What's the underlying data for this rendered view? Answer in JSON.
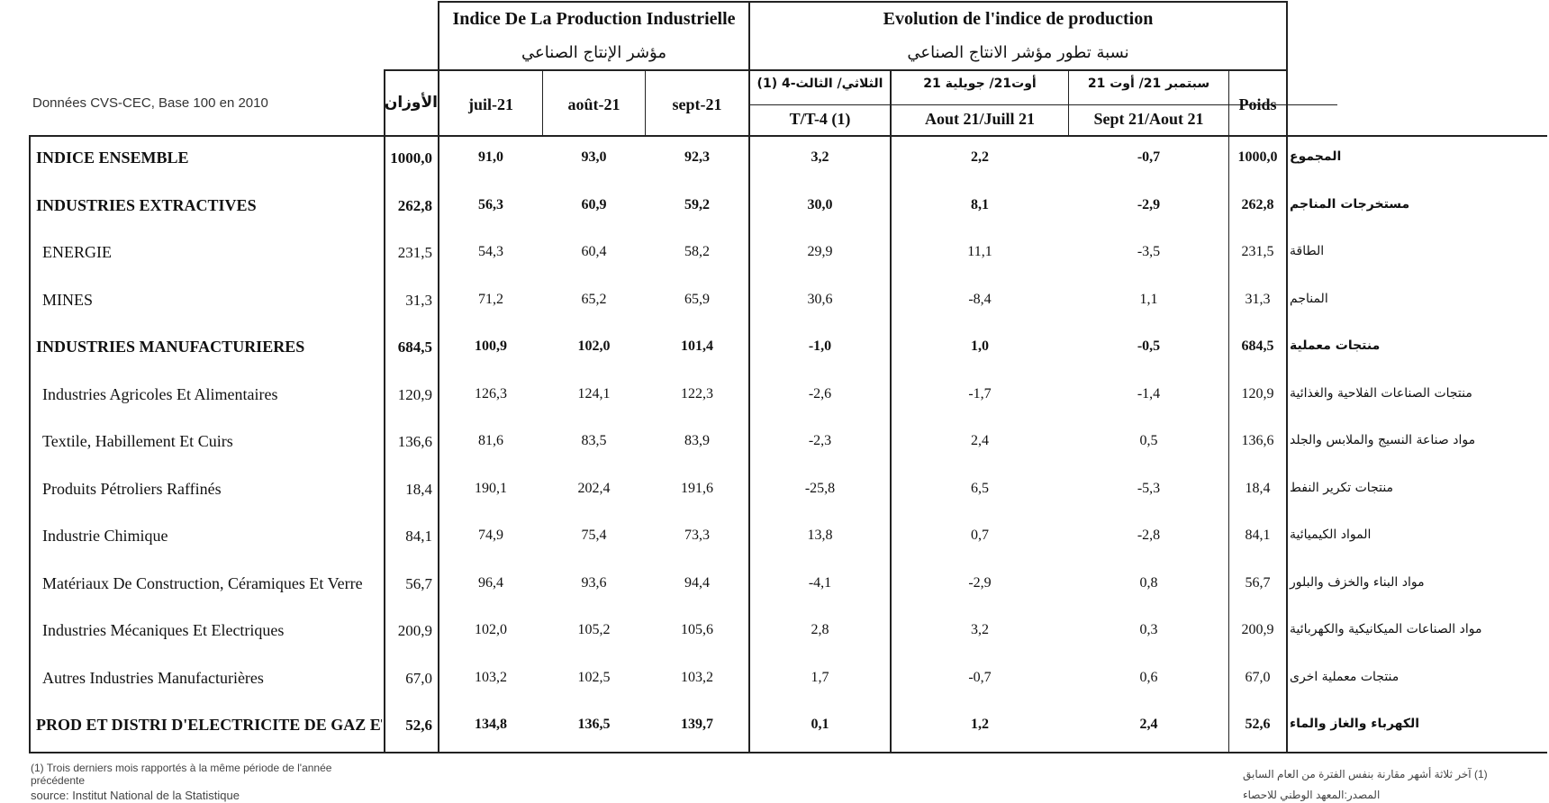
{
  "header": {
    "data_note": "Données CVS-CEC, Base 100 en 2010",
    "group_index_fr": "Indice De La Production Industrielle",
    "group_index_ar": "مؤشر الإنتاج الصناعي",
    "group_evo_fr": "Evolution de l'indice de production",
    "group_evo_ar": "نسبة تطور مؤشر الانتاج الصناعي",
    "weights_ar": "الأوزان",
    "months": [
      "juil-21",
      "août-21",
      "sept-21"
    ],
    "evo_cols": [
      {
        "ar": "الثلاثي/ الثالث-4 (1)",
        "fr": "T/T-4 (1)"
      },
      {
        "ar": "أوت21/ جويلية 21",
        "fr": "Aout 21/Juill 21"
      },
      {
        "ar": "سبتمبر 21/ أوت 21",
        "fr": "Sept 21/Aout 21"
      }
    ],
    "poids": "Poids"
  },
  "rows": [
    {
      "fr": "INDICE ENSEMBLE",
      "ar": "المجموع",
      "w": "1000,0",
      "m1": "91,0",
      "m2": "93,0",
      "m3": "92,3",
      "e1": "3,2",
      "e2": "2,2",
      "e3": "-0,7",
      "p": "1000,0",
      "bold": true
    },
    {
      "fr": "INDUSTRIES EXTRACTIVES",
      "ar": "مستخرجات المناجم",
      "w": "262,8",
      "m1": "56,3",
      "m2": "60,9",
      "m3": "59,2",
      "e1": "30,0",
      "e2": "8,1",
      "e3": "-2,9",
      "p": "262,8",
      "bold": true
    },
    {
      "fr": "ENERGIE",
      "ar": "الطاقة",
      "w": "231,5",
      "m1": "54,3",
      "m2": "60,4",
      "m3": "58,2",
      "e1": "29,9",
      "e2": "11,1",
      "e3": "-3,5",
      "p": "231,5",
      "bold": false
    },
    {
      "fr": "MINES",
      "ar": "المناجم",
      "w": "31,3",
      "m1": "71,2",
      "m2": "65,2",
      "m3": "65,9",
      "e1": "30,6",
      "e2": "-8,4",
      "e3": "1,1",
      "p": "31,3",
      "bold": false
    },
    {
      "fr": "INDUSTRIES MANUFACTURIERES",
      "ar": "منتجات معملية",
      "w": "684,5",
      "m1": "100,9",
      "m2": "102,0",
      "m3": "101,4",
      "e1": "-1,0",
      "e2": "1,0",
      "e3": "-0,5",
      "p": "684,5",
      "bold": true
    },
    {
      "fr": "Industries Agricoles Et Alimentaires",
      "ar": "منتجات الصناعات الفلاحية والغذائية",
      "w": "120,9",
      "m1": "126,3",
      "m2": "124,1",
      "m3": "122,3",
      "e1": "-2,6",
      "e2": "-1,7",
      "e3": "-1,4",
      "p": "120,9",
      "bold": false
    },
    {
      "fr": "Textile, Habillement Et Cuirs",
      "ar": "مواد صناعة النسيج والملابس والجلد",
      "w": "136,6",
      "m1": "81,6",
      "m2": "83,5",
      "m3": "83,9",
      "e1": "-2,3",
      "e2": "2,4",
      "e3": "0,5",
      "p": "136,6",
      "bold": false
    },
    {
      "fr": "Produits Pétroliers Raffinés",
      "ar": "منتجات تكرير النفط",
      "w": "18,4",
      "m1": "190,1",
      "m2": "202,4",
      "m3": "191,6",
      "e1": "-25,8",
      "e2": "6,5",
      "e3": "-5,3",
      "p": "18,4",
      "bold": false
    },
    {
      "fr": "Industrie Chimique",
      "ar": "المواد الكيميائية",
      "w": "84,1",
      "m1": "74,9",
      "m2": "75,4",
      "m3": "73,3",
      "e1": "13,8",
      "e2": "0,7",
      "e3": "-2,8",
      "p": "84,1",
      "bold": false
    },
    {
      "fr": "Matériaux De Construction, Céramiques Et Verre",
      "ar": "مواد البناء والخزف والبلور",
      "w": "56,7",
      "m1": "96,4",
      "m2": "93,6",
      "m3": "94,4",
      "e1": "-4,1",
      "e2": "-2,9",
      "e3": "0,8",
      "p": "56,7",
      "bold": false
    },
    {
      "fr": "Industries Mécaniques Et Electriques",
      "ar": "مواد الصناعات الميكانيكية والكهربائية",
      "w": "200,9",
      "m1": "102,0",
      "m2": "105,2",
      "m3": "105,6",
      "e1": "2,8",
      "e2": "3,2",
      "e3": "0,3",
      "p": "200,9",
      "bold": false
    },
    {
      "fr": "Autres Industries Manufacturières",
      "ar": "منتجات معملية اخرى",
      "w": "67,0",
      "m1": "103,2",
      "m2": "102,5",
      "m3": "103,2",
      "e1": "1,7",
      "e2": "-0,7",
      "e3": "0,6",
      "p": "67,0",
      "bold": false
    },
    {
      "fr": "PROD ET DISTRI D'ELECTRICITE DE GAZ ET",
      "ar": "الكهرباء والغاز والماء",
      "w": "52,6",
      "m1": "134,8",
      "m2": "136,5",
      "m3": "139,7",
      "e1": "0,1",
      "e2": "1,2",
      "e3": "2,4",
      "p": "52,6",
      "bold": true
    }
  ],
  "footer": {
    "note_fr": "(1) Trois derniers mois rapportés à la même période de l'année précédente",
    "source_fr": "source: Institut National de la Statistique",
    "note_ar": "(1) آخر ثلاثة أشهر مقارنة بنفس الفترة من العام السابق",
    "source_ar": "المصدر:المعهد الوطني للاحصاء"
  }
}
